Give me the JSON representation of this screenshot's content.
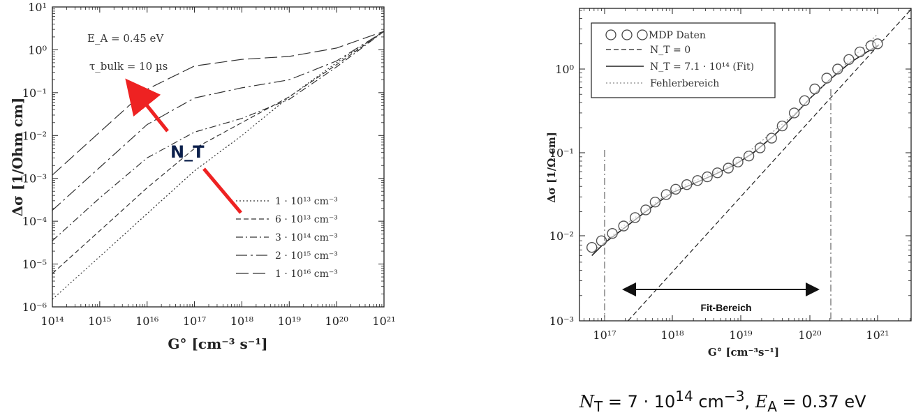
{
  "chart_data": [
    {
      "type": "line",
      "xlabel": "G° [cm⁻³ s⁻¹]",
      "ylabel": "Δσ [1/Ohm cm]",
      "xscale": "log",
      "yscale": "log",
      "xlim": [
        100000000000000.0,
        1e+21
      ],
      "ylim": [
        1e-06,
        10
      ],
      "x_ticks": [
        "10¹⁴",
        "10¹⁵",
        "10¹⁶",
        "10¹⁷",
        "10¹⁸",
        "10¹⁹",
        "10²⁰",
        "10²¹"
      ],
      "y_ticks": [
        "10⁻⁶",
        "10⁻⁵",
        "10⁻⁴",
        "10⁻³",
        "10⁻²",
        "10⁻¹",
        "10⁰",
        "10¹"
      ],
      "annotations": [
        "E_A = 0.45 eV",
        "τ_bulk = 10 µs",
        "N_T"
      ],
      "legend_position": "bottom-right",
      "x": [
        100000000000000.0,
        1000000000000000.0,
        1e+16,
        1e+17,
        1e+18,
        1e+19,
        1e+20,
        1e+21
      ],
      "series": [
        {
          "name": "1 · 10¹³ cm⁻³",
          "style": "dotted",
          "values": [
            1.5e-06,
            1.5e-05,
            0.00015,
            0.0015,
            0.01,
            0.08,
            0.5,
            2.7
          ]
        },
        {
          "name": "6 · 10¹³ cm⁻³",
          "style": "dashed",
          "values": [
            6e-06,
            6e-05,
            0.0006,
            0.005,
            0.02,
            0.08,
            0.45,
            2.7
          ]
        },
        {
          "name": "3 · 10¹⁴ cm⁻³",
          "style": "dash-dot",
          "values": [
            3.5e-05,
            0.00035,
            0.003,
            0.012,
            0.025,
            0.07,
            0.4,
            2.7
          ]
        },
        {
          "name": "2 · 10¹⁵ cm⁻³",
          "style": "long-dash-dot",
          "values": [
            0.00018,
            0.0018,
            0.018,
            0.075,
            0.13,
            0.2,
            0.55,
            2.7
          ]
        },
        {
          "name": "1 · 10¹⁶ cm⁻³",
          "style": "long-dash",
          "values": [
            0.0012,
            0.012,
            0.12,
            0.42,
            0.6,
            0.7,
            1.1,
            2.7
          ]
        }
      ]
    },
    {
      "type": "scatter",
      "xlabel": "G° [cm⁻³s⁻¹]",
      "ylabel": "Δσ [1/Ω cm]",
      "xscale": "log",
      "yscale": "log",
      "xlim": [
        4e+16,
        3e+21
      ],
      "ylim": [
        0.001,
        5
      ],
      "x_ticks": [
        "10¹⁷",
        "10¹⁸",
        "10¹⁹",
        "10²⁰",
        "10²¹"
      ],
      "y_ticks": [
        "10⁻³",
        "10⁻²",
        "10⁻¹",
        "10⁰"
      ],
      "legend_position": "top-left",
      "legend": [
        "MDP Daten",
        "N_T = 0",
        "N_T = 7.1 · 10¹⁴ (Fit)",
        "Fehlerbereich"
      ],
      "fit_range": {
        "label": "Fit-Bereich",
        "from": 1e+17,
        "to": 2e+20
      },
      "series": [
        {
          "name": "MDP Daten",
          "style": "circles",
          "x": [
            6.5e+16,
            9e+16,
            1.3e+17,
            1.9e+17,
            2.8e+17,
            4e+17,
            5.5e+17,
            8e+17,
            1.1e+18,
            1.6e+18,
            2.3e+18,
            3.2e+18,
            4.5e+18,
            6.5e+18,
            9e+18,
            1.3e+19,
            1.9e+19,
            2.8e+19,
            4e+19,
            6e+19,
            8.5e+19,
            1.2e+20,
            1.8e+20,
            2.6e+20,
            3.8e+20,
            5.5e+20,
            8e+20,
            1e+21
          ],
          "y": [
            0.0075,
            0.009,
            0.011,
            0.0135,
            0.017,
            0.021,
            0.026,
            0.032,
            0.037,
            0.042,
            0.047,
            0.052,
            0.058,
            0.066,
            0.078,
            0.092,
            0.115,
            0.15,
            0.21,
            0.3,
            0.42,
            0.58,
            0.78,
            1.0,
            1.3,
            1.6,
            1.9,
            2.0
          ]
        },
        {
          "name": "N_T = 0",
          "style": "dashed",
          "x": [
            2.2e+17,
            3e+21
          ],
          "y": [
            0.001,
            5.0
          ]
        },
        {
          "name": "N_T = 7.1 · 10¹⁴ (Fit)",
          "style": "solid",
          "x": [
            6.5e+16,
            1e+17,
            2e+17,
            4e+17,
            7e+17,
            1e+18,
            2e+18,
            4e+18,
            8e+18,
            1.5e+19,
            3e+19,
            6e+19,
            1e+20,
            2e+20,
            4e+20,
            7e+20,
            1e+21
          ],
          "y": [
            0.006,
            0.0085,
            0.013,
            0.02,
            0.028,
            0.034,
            0.043,
            0.055,
            0.072,
            0.1,
            0.16,
            0.28,
            0.44,
            0.75,
            1.2,
            1.6,
            1.9
          ]
        },
        {
          "name": "Fehlerbereich",
          "style": "dotted",
          "x": [
            6.5e+16,
            2e+17,
            1e+18,
            8e+18,
            6e+19,
            4e+20,
            1e+21
          ],
          "y": [
            0.0065,
            0.014,
            0.036,
            0.075,
            0.29,
            1.3,
            2.6
          ]
        }
      ]
    }
  ],
  "caption": {
    "left": "N",
    "sub": "T",
    "mid": " = 7 · 10",
    "sup": "14",
    "unit": " cm",
    "unitsup": "−3",
    "sep": ", ",
    "left2": "E",
    "sub2": "A",
    "tail": " = 0.37 eV"
  }
}
